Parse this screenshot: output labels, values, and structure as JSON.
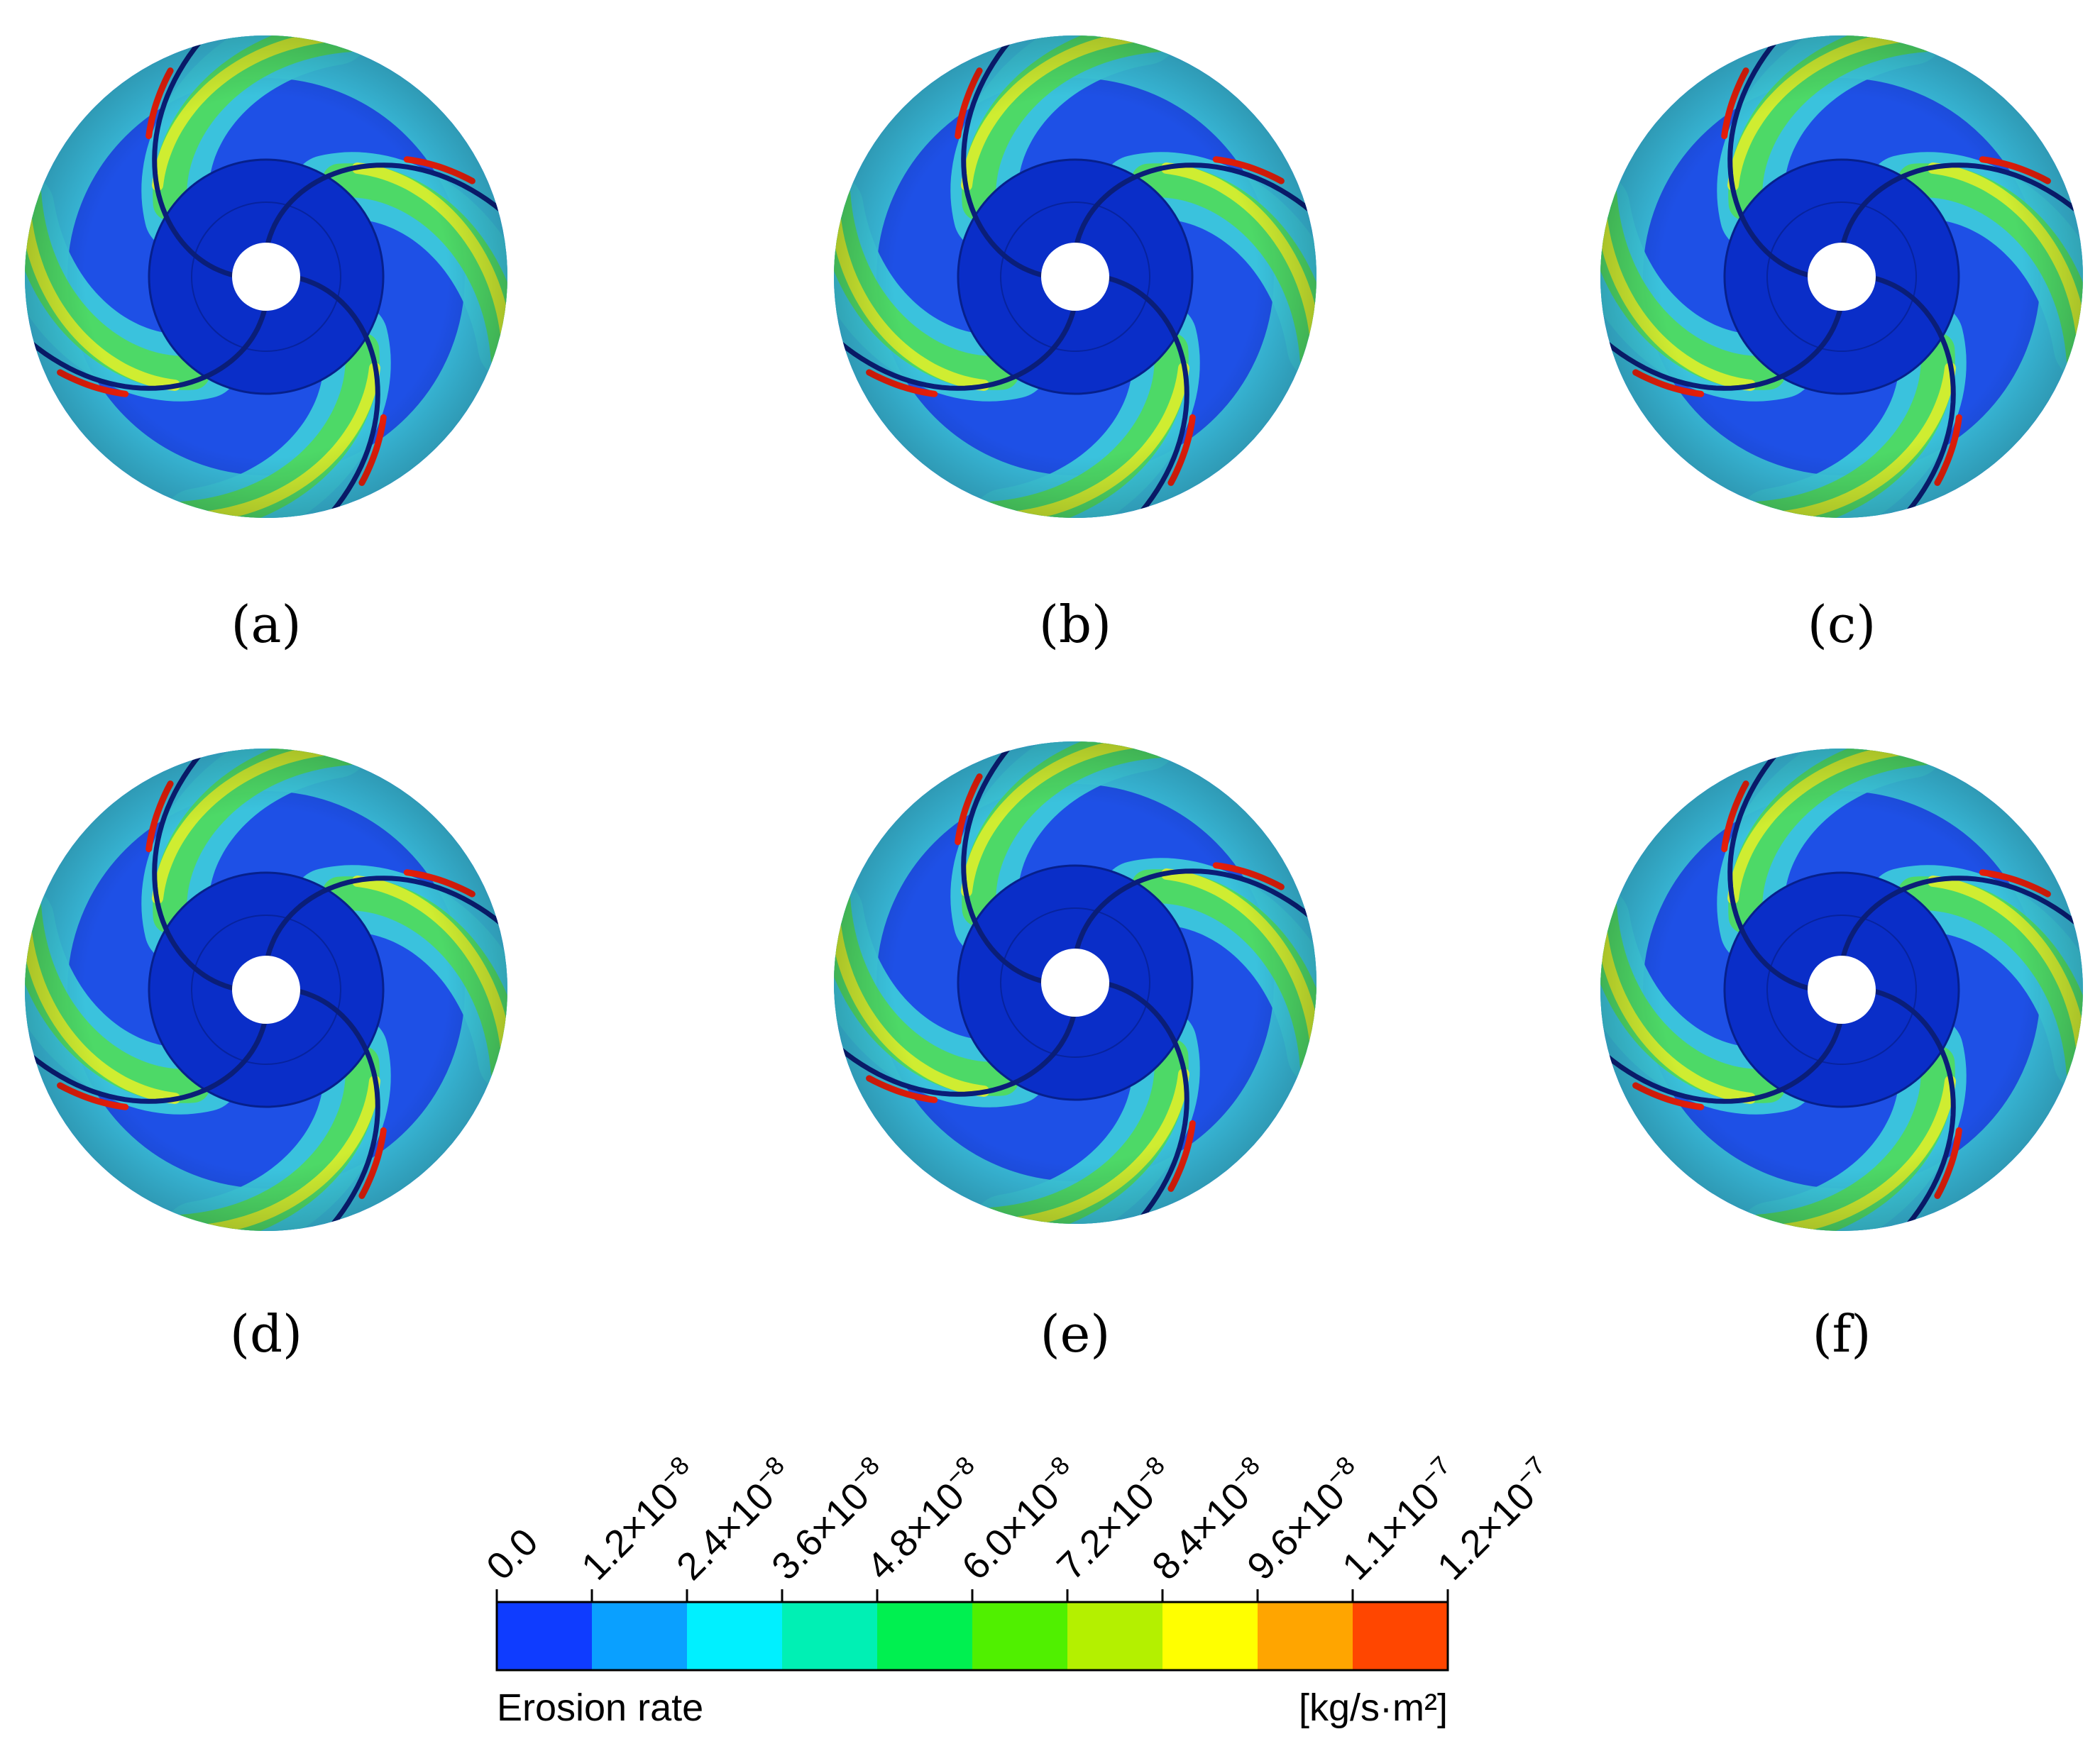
{
  "panels": [
    {
      "label": "(a)"
    },
    {
      "label": "(b)"
    },
    {
      "label": "(c)"
    },
    {
      "label": "(d)"
    },
    {
      "label": "(e)"
    },
    {
      "label": "(f)"
    }
  ],
  "colorbar": {
    "title": "Erosion rate",
    "unit": "[kg/s·m²]",
    "ticks": [
      {
        "base": "0.0",
        "exp": ""
      },
      {
        "base": "1.2×10",
        "exp": "−8"
      },
      {
        "base": "2.4×10",
        "exp": "−8"
      },
      {
        "base": "3.6×10",
        "exp": "−8"
      },
      {
        "base": "4.8×10",
        "exp": "−8"
      },
      {
        "base": "6.0×10",
        "exp": "−8"
      },
      {
        "base": "7.2×10",
        "exp": "−8"
      },
      {
        "base": "8.4×10",
        "exp": "−8"
      },
      {
        "base": "9.6×10",
        "exp": "−8"
      },
      {
        "base": "1.1×10",
        "exp": "−7"
      },
      {
        "base": "1.2×10",
        "exp": "−7"
      }
    ],
    "colors": [
      "#0f3cff",
      "#0aa0ff",
      "#00f0ff",
      "#00f0b4",
      "#00f050",
      "#50f000",
      "#b4f000",
      "#ffff00",
      "#ffa500",
      "#ff4600"
    ]
  },
  "palette": {
    "base_blue": "#1e50e6",
    "dark_blue": "#0a2ec8",
    "band_cyan": "#3cc8dc",
    "band_green": "#50dc5a",
    "band_yellow": "#e6f028",
    "hot_red": "#e61e0a"
  }
}
